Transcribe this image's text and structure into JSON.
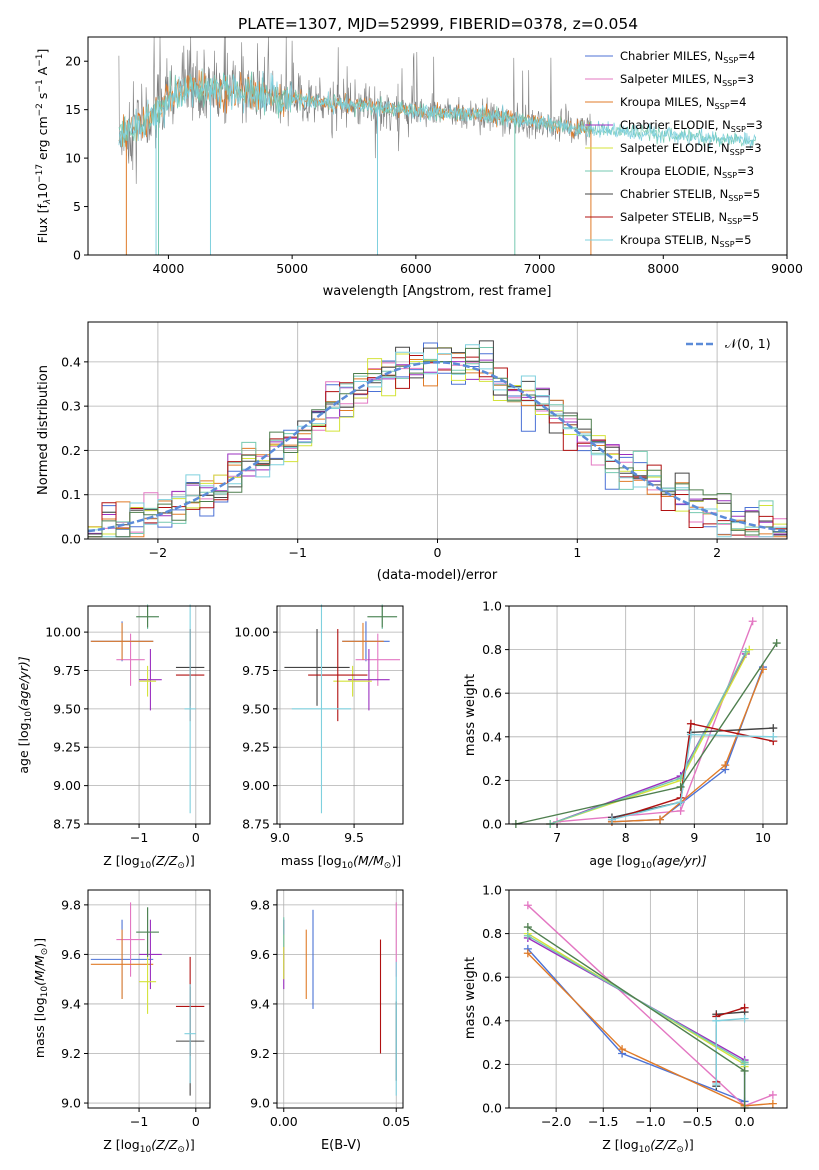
{
  "figure_title": "PLATE=1307, MJD=52999, FIBERID=0378, z=0.054",
  "colors": {
    "chabrier_miles": "#4c72d6",
    "salpeter_miles": "#e377c2",
    "kroupa_miles": "#e07b28",
    "chabrier_elodie": "#9b30c0",
    "salpeter_elodie": "#d4e33a",
    "kroupa_elodie": "#76c9b0",
    "chabrier_stelib": "#444444",
    "salpeter_stelib": "#b01010",
    "kroupa_stelib": "#7fd0de",
    "dark_green": "#4f7f4f",
    "gaussian": "#5b8bd8"
  },
  "chart_data": [
    {
      "id": "spectrum",
      "type": "line",
      "title": "PLATE=1307, MJD=52999, FIBERID=0378, z=0.054",
      "xlabel": "wavelength [Angstrom, rest frame]",
      "ylabel_main": "Flux [f",
      "ylabel_lambda": "λ",
      "ylabel_rest": "10",
      "ylabel_exp": "−17",
      "ylabel_units": " erg cm",
      "ylabel_units_exp": "−2",
      "ylabel_s": " s",
      "ylabel_s_exp": "−1",
      "ylabel_A": " A",
      "ylabel_A_exp": "−1",
      "ylabel_close": "]",
      "xlim": [
        3350,
        9000
      ],
      "ylim": [
        0,
        22.5
      ],
      "xticks": [
        "4000",
        "5000",
        "6000",
        "7000",
        "8000",
        "9000"
      ],
      "xtick_values": [
        4000,
        5000,
        6000,
        7000,
        8000,
        9000
      ],
      "yticks": [
        "0",
        "5",
        "10",
        "15",
        "20"
      ],
      "ytick_values": [
        0,
        5,
        10,
        15,
        20
      ],
      "continuum": [
        [
          3600,
          12.0
        ],
        [
          3700,
          12.8
        ],
        [
          3800,
          13.8
        ],
        [
          3900,
          14.6
        ],
        [
          4000,
          16.5
        ],
        [
          4100,
          17.0
        ],
        [
          4300,
          17.2
        ],
        [
          4500,
          17.0
        ],
        [
          4800,
          16.4
        ],
        [
          5000,
          16.2
        ],
        [
          5200,
          15.8
        ],
        [
          5500,
          15.5
        ],
        [
          5800,
          15.1
        ],
        [
          6000,
          14.8
        ],
        [
          6300,
          14.6
        ],
        [
          6600,
          14.4
        ],
        [
          6800,
          14.0
        ],
        [
          7000,
          13.7
        ],
        [
          7200,
          13.3
        ],
        [
          7400,
          13.0
        ],
        [
          7600,
          12.8
        ],
        [
          7800,
          12.6
        ],
        [
          8000,
          12.4
        ],
        [
          8300,
          12.1
        ],
        [
          8600,
          11.9
        ],
        [
          8750,
          11.8
        ]
      ],
      "legend": [
        {
          "name_main": "Chabrier MILES, N",
          "name_sub": "SSP",
          "name_rest": "=4",
          "color": "#4c72d6"
        },
        {
          "name_main": "Salpeter MILES, N",
          "name_sub": "SSP",
          "name_rest": "=3",
          "color": "#e377c2"
        },
        {
          "name_main": "Kroupa MILES, N",
          "name_sub": "SSP",
          "name_rest": "=4",
          "color": "#e07b28"
        },
        {
          "name_main": "Chabrier ELODIE, N",
          "name_sub": "SSP",
          "name_rest": "=3",
          "color": "#9b30c0"
        },
        {
          "name_main": "Salpeter ELODIE, N",
          "name_sub": "SSP",
          "name_rest": "=3",
          "color": "#d4e33a"
        },
        {
          "name_main": "Kroupa ELODIE, N",
          "name_sub": "SSP",
          "name_rest": "=3",
          "color": "#76c9b0"
        },
        {
          "name_main": "Chabrier STELIB, N",
          "name_sub": "SSP",
          "name_rest": "=5",
          "color": "#444444"
        },
        {
          "name_main": "Salpeter STELIB, N",
          "name_sub": "SSP",
          "name_rest": "=5",
          "color": "#b01010"
        },
        {
          "name_main": "Kroupa STELIB, N",
          "name_sub": "SSP",
          "name_rest": "=5",
          "color": "#7fd0de"
        }
      ],
      "legend_position": "right"
    },
    {
      "id": "residuals",
      "type": "line",
      "xlabel": "(data-model)/error",
      "ylabel": "Normed distribution",
      "xlim": [
        -2.5,
        2.5
      ],
      "ylim": [
        0,
        0.49
      ],
      "xticks": [
        "−2",
        "−1",
        "0",
        "1",
        "2"
      ],
      "xtick_values": [
        -2,
        -1,
        0,
        1,
        2
      ],
      "yticks": [
        "0.0",
        "0.1",
        "0.2",
        "0.3",
        "0.4"
      ],
      "ytick_values": [
        0,
        0.1,
        0.2,
        0.3,
        0.4
      ],
      "grid": true,
      "legend_label": "𝒩(0, 1)",
      "legend_position": "top-right",
      "bin_width": 0.1
    },
    {
      "id": "age_vs_Z",
      "type": "scatter",
      "xlabel_main": "Z [log",
      "xlabel_sub": "10",
      "xlabel_rest": "(Z/Z",
      "xlabel_sun_sub": "⊙",
      "xlabel_close": ")]",
      "ylabel_main": "age  [log",
      "ylabel_sub": "10",
      "ylabel_rest": "(age/yr)]",
      "xlim": [
        -1.9,
        0.25
      ],
      "ylim": [
        8.75,
        10.17
      ],
      "xticks": [
        "−1",
        "0"
      ],
      "xtick_values": [
        -1,
        0
      ],
      "yticks": [
        "8.75",
        "9.00",
        "9.25",
        "9.50",
        "9.75",
        "10.00"
      ],
      "ytick_values": [
        8.75,
        9.0,
        9.25,
        9.5,
        9.75,
        10.0
      ],
      "grid": true,
      "points": [
        {
          "x": -1.3,
          "xerr": 0.55,
          "y": 9.94,
          "yerr": 0.13,
          "color": "#4c72d6"
        },
        {
          "x": -1.15,
          "xerr": 0.25,
          "y": 9.82,
          "yerr": 0.17,
          "color": "#e377c2"
        },
        {
          "x": -1.3,
          "xerr": 0.55,
          "y": 9.94,
          "yerr": 0.12,
          "color": "#e07b28"
        },
        {
          "x": -0.8,
          "xerr": 0.2,
          "y": 9.69,
          "yerr": 0.2,
          "color": "#9b30c0"
        },
        {
          "x": -0.85,
          "xerr": 0.15,
          "y": 9.68,
          "yerr": 0.1,
          "color": "#d4e33a"
        },
        {
          "x": -0.85,
          "xerr": 0.2,
          "y": 10.1,
          "yerr": 0.08,
          "color": "#76c9b0"
        },
        {
          "x": -0.1,
          "xerr": 0.25,
          "y": 9.77,
          "yerr": 0.25,
          "color": "#444444"
        },
        {
          "x": -0.1,
          "xerr": 0.25,
          "y": 9.72,
          "yerr": 0.3,
          "color": "#b01010"
        },
        {
          "x": -0.1,
          "xerr": 0.1,
          "y": 9.5,
          "yerr": 0.68,
          "color": "#7fd0de"
        },
        {
          "x": -0.85,
          "xerr": 0.2,
          "y": 10.1,
          "yerr": 0.07,
          "color": "#4f7f4f"
        }
      ]
    },
    {
      "id": "age_vs_mass",
      "type": "scatter",
      "xlabel_main": "mass [log",
      "xlabel_sub": "10",
      "xlabel_rest": "(M/M",
      "xlabel_sun_sub": "⊙",
      "xlabel_close": ")]",
      "xlim": [
        8.98,
        9.83
      ],
      "ylim": [
        8.75,
        10.17
      ],
      "xticks": [
        "9.0",
        "9.5"
      ],
      "xtick_values": [
        9.0,
        9.5
      ],
      "yticks": [
        "8.75",
        "9.00",
        "9.25",
        "9.50",
        "9.75",
        "10.00"
      ],
      "ytick_values": [
        8.75,
        9.0,
        9.25,
        9.5,
        9.75,
        10.0
      ],
      "grid": true,
      "points": [
        {
          "x": 9.58,
          "xerr": 0.16,
          "y": 9.94,
          "yerr": 0.13,
          "color": "#4c72d6"
        },
        {
          "x": 9.66,
          "xerr": 0.15,
          "y": 9.82,
          "yerr": 0.17,
          "color": "#e377c2"
        },
        {
          "x": 9.56,
          "xerr": 0.14,
          "y": 9.94,
          "yerr": 0.12,
          "color": "#e07b28"
        },
        {
          "x": 9.6,
          "xerr": 0.14,
          "y": 9.69,
          "yerr": 0.2,
          "color": "#9b30c0"
        },
        {
          "x": 9.49,
          "xerr": 0.13,
          "y": 9.68,
          "yerr": 0.1,
          "color": "#d4e33a"
        },
        {
          "x": 9.69,
          "xerr": 0.1,
          "y": 10.1,
          "yerr": 0.08,
          "color": "#76c9b0"
        },
        {
          "x": 9.25,
          "xerr": 0.22,
          "y": 9.77,
          "yerr": 0.25,
          "color": "#444444"
        },
        {
          "x": 9.39,
          "xerr": 0.2,
          "y": 9.72,
          "yerr": 0.3,
          "color": "#b01010"
        },
        {
          "x": 9.28,
          "xerr": 0.2,
          "y": 9.5,
          "yerr": 0.68,
          "color": "#7fd0de"
        },
        {
          "x": 9.69,
          "xerr": 0.1,
          "y": 10.1,
          "yerr": 0.07,
          "color": "#4f7f4f"
        }
      ]
    },
    {
      "id": "mass_weight_vs_age",
      "type": "line",
      "xlabel_main": "age  [log",
      "xlabel_sub": "10",
      "xlabel_rest": "(age/yr)]",
      "ylabel": "mass weight",
      "xlim": [
        6.3,
        10.35
      ],
      "ylim": [
        0,
        1.0
      ],
      "xticks": [
        "7",
        "8",
        "9",
        "10"
      ],
      "xtick_values": [
        7,
        8,
        9,
        10
      ],
      "yticks": [
        "0.0",
        "0.2",
        "0.4",
        "0.6",
        "0.8",
        "1.0"
      ],
      "ytick_values": [
        0,
        0.2,
        0.4,
        0.6,
        0.8,
        1.0
      ],
      "grid": true,
      "series": [
        {
          "color": "#4c72d6",
          "x": [
            7.8,
            8.5,
            9.45,
            10.0
          ],
          "y": [
            0.01,
            0.02,
            0.25,
            0.72
          ]
        },
        {
          "color": "#e377c2",
          "x": [
            7.0,
            8.8,
            9.85
          ],
          "y": [
            0.01,
            0.06,
            0.93
          ]
        },
        {
          "color": "#e07b28",
          "x": [
            7.8,
            8.5,
            9.45,
            10.0
          ],
          "y": [
            0.01,
            0.02,
            0.27,
            0.71
          ]
        },
        {
          "color": "#9b30c0",
          "x": [
            6.9,
            8.8,
            9.75
          ],
          "y": [
            0.0,
            0.22,
            0.78
          ]
        },
        {
          "color": "#d4e33a",
          "x": [
            6.9,
            8.8,
            9.8
          ],
          "y": [
            0.0,
            0.2,
            0.8
          ]
        },
        {
          "color": "#76c9b0",
          "x": [
            6.9,
            8.8,
            9.75
          ],
          "y": [
            0.0,
            0.21,
            0.79
          ]
        },
        {
          "color": "#444444",
          "x": [
            7.8,
            8.8,
            8.95,
            10.15
          ],
          "y": [
            0.03,
            0.1,
            0.42,
            0.44
          ]
        },
        {
          "color": "#b01010",
          "x": [
            7.8,
            8.8,
            8.95,
            10.15
          ],
          "y": [
            0.02,
            0.12,
            0.46,
            0.38
          ]
        },
        {
          "color": "#7fd0de",
          "x": [
            7.8,
            8.8,
            8.95,
            10.15
          ],
          "y": [
            0.02,
            0.1,
            0.41,
            0.4
          ]
        },
        {
          "color": "#4f7f4f",
          "x": [
            6.4,
            8.8,
            10.2
          ],
          "y": [
            0.0,
            0.17,
            0.83
          ]
        }
      ]
    },
    {
      "id": "mass_vs_Z",
      "type": "scatter",
      "xlabel_main": "Z [log",
      "xlabel_sub": "10",
      "xlabel_rest": "(Z/Z",
      "xlabel_sun_sub": "⊙",
      "xlabel_close": ")]",
      "ylabel_main": "mass [log",
      "ylabel_sub": "10",
      "ylabel_rest": "(M/M",
      "ylabel_sun_sub": "⊙",
      "ylabel_close": ")]",
      "xlim": [
        -1.9,
        0.25
      ],
      "ylim": [
        8.98,
        9.86
      ],
      "xticks": [
        "−1",
        "0"
      ],
      "xtick_values": [
        -1,
        0
      ],
      "yticks": [
        "9.0",
        "9.2",
        "9.4",
        "9.6",
        "9.8"
      ],
      "ytick_values": [
        9.0,
        9.2,
        9.4,
        9.6,
        9.8
      ],
      "grid": true,
      "points": [
        {
          "x": -1.3,
          "xerr": 0.55,
          "y": 9.58,
          "yerr": 0.16,
          "color": "#4c72d6"
        },
        {
          "x": -1.15,
          "xerr": 0.25,
          "y": 9.66,
          "yerr": 0.15,
          "color": "#e377c2"
        },
        {
          "x": -1.3,
          "xerr": 0.55,
          "y": 9.56,
          "yerr": 0.14,
          "color": "#e07b28"
        },
        {
          "x": -0.8,
          "xerr": 0.2,
          "y": 9.6,
          "yerr": 0.14,
          "color": "#9b30c0"
        },
        {
          "x": -0.85,
          "xerr": 0.15,
          "y": 9.49,
          "yerr": 0.13,
          "color": "#d4e33a"
        },
        {
          "x": -0.85,
          "xerr": 0.2,
          "y": 9.69,
          "yerr": 0.1,
          "color": "#76c9b0"
        },
        {
          "x": -0.1,
          "xerr": 0.25,
          "y": 9.25,
          "yerr": 0.22,
          "color": "#444444"
        },
        {
          "x": -0.1,
          "xerr": 0.25,
          "y": 9.39,
          "yerr": 0.2,
          "color": "#b01010"
        },
        {
          "x": -0.1,
          "xerr": 0.1,
          "y": 9.28,
          "yerr": 0.2,
          "color": "#7fd0de"
        },
        {
          "x": -0.85,
          "xerr": 0.2,
          "y": 9.69,
          "yerr": 0.1,
          "color": "#4f7f4f"
        }
      ]
    },
    {
      "id": "mass_vs_ebv",
      "type": "scatter",
      "xlabel": "E(B-V)",
      "xlim": [
        -0.003,
        0.053
      ],
      "ylim": [
        8.98,
        9.86
      ],
      "xticks": [
        "0.00",
        "0.05"
      ],
      "xtick_values": [
        0.0,
        0.05
      ],
      "yticks": [
        "9.0",
        "9.2",
        "9.4",
        "9.6",
        "9.8"
      ],
      "ytick_values": [
        9.0,
        9.2,
        9.4,
        9.6,
        9.8
      ],
      "grid": true,
      "points": [
        {
          "x": 0.013,
          "xerr": 0,
          "y": 9.58,
          "yerr": 0.2,
          "color": "#4c72d6"
        },
        {
          "x": 0.05,
          "xerr": 0,
          "y": 9.66,
          "yerr": 0.15,
          "color": "#e377c2"
        },
        {
          "x": 0.01,
          "xerr": 0,
          "y": 9.56,
          "yerr": 0.14,
          "color": "#e07b28"
        },
        {
          "x": 0.0,
          "xerr": 0,
          "y": 9.6,
          "yerr": 0.14,
          "color": "#9b30c0"
        },
        {
          "x": 0.0,
          "xerr": 0,
          "y": 9.59,
          "yerr": 0.09,
          "color": "#d4e33a"
        },
        {
          "x": 0.0,
          "xerr": 0,
          "y": 9.69,
          "yerr": 0.06,
          "color": "#76c9b0"
        },
        {
          "x": 0.05,
          "xerr": 0,
          "y": 9.25,
          "yerr": 0.16,
          "color": "#444444"
        },
        {
          "x": 0.043,
          "xerr": 0,
          "y": 9.43,
          "yerr": 0.23,
          "color": "#b01010"
        },
        {
          "x": 0.05,
          "xerr": 0,
          "y": 9.3,
          "yerr": 0.27,
          "color": "#7fd0de"
        }
      ]
    },
    {
      "id": "mass_weight_vs_Z",
      "type": "line",
      "xlabel_main": "Z [log",
      "xlabel_sub": "10",
      "xlabel_rest": "(Z/Z",
      "xlabel_sun_sub": "⊙",
      "xlabel_close": ")]",
      "ylabel": "mass weight",
      "xlim": [
        -2.5,
        0.45
      ],
      "ylim": [
        0,
        1.0
      ],
      "xticks": [
        "−2.0",
        "−1.5",
        "−1.0",
        "−0.5",
        "0.0"
      ],
      "xtick_values": [
        -2.0,
        -1.5,
        -1.0,
        -0.5,
        0.0
      ],
      "yticks": [
        "0.0",
        "0.2",
        "0.4",
        "0.6",
        "0.8",
        "1.0"
      ],
      "ytick_values": [
        0,
        0.2,
        0.4,
        0.6,
        0.8,
        1.0
      ],
      "grid": true,
      "series": [
        {
          "color": "#4c72d6",
          "x": [
            -2.3,
            -1.3,
            0.0,
            0.0
          ],
          "y": [
            0.73,
            0.25,
            0.03,
            0.21
          ]
        },
        {
          "color": "#e377c2",
          "x": [
            -2.3,
            0.0,
            0.3
          ],
          "y": [
            0.93,
            0.01,
            0.06
          ]
        },
        {
          "color": "#e07b28",
          "x": [
            -2.3,
            -1.3,
            0.0,
            0.3
          ],
          "y": [
            0.71,
            0.27,
            0.01,
            0.02
          ]
        },
        {
          "color": "#9b30c0",
          "x": [
            -2.3,
            0.0,
            0.0
          ],
          "y": [
            0.78,
            0.22,
            0.2
          ]
        },
        {
          "color": "#d4e33a",
          "x": [
            -2.3,
            0.0,
            0.0
          ],
          "y": [
            0.8,
            0.2,
            0.19
          ]
        },
        {
          "color": "#76c9b0",
          "x": [
            -2.3,
            0.0,
            0.0
          ],
          "y": [
            0.79,
            0.21,
            0.2
          ]
        },
        {
          "color": "#444444",
          "x": [
            -0.3,
            -0.3,
            0.0
          ],
          "y": [
            0.1,
            0.43,
            0.44
          ]
        },
        {
          "color": "#b01010",
          "x": [
            -0.3,
            -0.3,
            0.0
          ],
          "y": [
            0.12,
            0.42,
            0.46
          ]
        },
        {
          "color": "#7fd0de",
          "x": [
            -0.3,
            -0.3,
            0.0
          ],
          "y": [
            0.11,
            0.4,
            0.41
          ]
        },
        {
          "color": "#4f7f4f",
          "x": [
            -2.3,
            0.0,
            0.0
          ],
          "y": [
            0.83,
            0.17,
            0.0
          ]
        }
      ]
    }
  ]
}
